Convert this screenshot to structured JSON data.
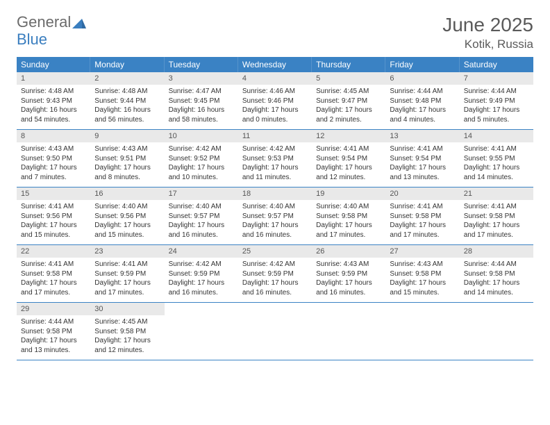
{
  "brand": {
    "word1": "General",
    "word2": "Blue"
  },
  "header": {
    "month_title": "June 2025",
    "location": "Kotik, Russia"
  },
  "weekdays": [
    "Sunday",
    "Monday",
    "Tuesday",
    "Wednesday",
    "Thursday",
    "Friday",
    "Saturday"
  ],
  "colors": {
    "header_bar": "#3a82c4",
    "daynum_bg": "#e9e9e9",
    "rule": "#3a82c4",
    "text": "#333333",
    "muted": "#6b6b6b",
    "brand_blue": "#3a7ebf"
  },
  "weeks": [
    [
      {
        "n": "1",
        "sunrise": "Sunrise: 4:48 AM",
        "sunset": "Sunset: 9:43 PM",
        "day1": "Daylight: 16 hours",
        "day2": "and 54 minutes."
      },
      {
        "n": "2",
        "sunrise": "Sunrise: 4:48 AM",
        "sunset": "Sunset: 9:44 PM",
        "day1": "Daylight: 16 hours",
        "day2": "and 56 minutes."
      },
      {
        "n": "3",
        "sunrise": "Sunrise: 4:47 AM",
        "sunset": "Sunset: 9:45 PM",
        "day1": "Daylight: 16 hours",
        "day2": "and 58 minutes."
      },
      {
        "n": "4",
        "sunrise": "Sunrise: 4:46 AM",
        "sunset": "Sunset: 9:46 PM",
        "day1": "Daylight: 17 hours",
        "day2": "and 0 minutes."
      },
      {
        "n": "5",
        "sunrise": "Sunrise: 4:45 AM",
        "sunset": "Sunset: 9:47 PM",
        "day1": "Daylight: 17 hours",
        "day2": "and 2 minutes."
      },
      {
        "n": "6",
        "sunrise": "Sunrise: 4:44 AM",
        "sunset": "Sunset: 9:48 PM",
        "day1": "Daylight: 17 hours",
        "day2": "and 4 minutes."
      },
      {
        "n": "7",
        "sunrise": "Sunrise: 4:44 AM",
        "sunset": "Sunset: 9:49 PM",
        "day1": "Daylight: 17 hours",
        "day2": "and 5 minutes."
      }
    ],
    [
      {
        "n": "8",
        "sunrise": "Sunrise: 4:43 AM",
        "sunset": "Sunset: 9:50 PM",
        "day1": "Daylight: 17 hours",
        "day2": "and 7 minutes."
      },
      {
        "n": "9",
        "sunrise": "Sunrise: 4:43 AM",
        "sunset": "Sunset: 9:51 PM",
        "day1": "Daylight: 17 hours",
        "day2": "and 8 minutes."
      },
      {
        "n": "10",
        "sunrise": "Sunrise: 4:42 AM",
        "sunset": "Sunset: 9:52 PM",
        "day1": "Daylight: 17 hours",
        "day2": "and 10 minutes."
      },
      {
        "n": "11",
        "sunrise": "Sunrise: 4:42 AM",
        "sunset": "Sunset: 9:53 PM",
        "day1": "Daylight: 17 hours",
        "day2": "and 11 minutes."
      },
      {
        "n": "12",
        "sunrise": "Sunrise: 4:41 AM",
        "sunset": "Sunset: 9:54 PM",
        "day1": "Daylight: 17 hours",
        "day2": "and 12 minutes."
      },
      {
        "n": "13",
        "sunrise": "Sunrise: 4:41 AM",
        "sunset": "Sunset: 9:54 PM",
        "day1": "Daylight: 17 hours",
        "day2": "and 13 minutes."
      },
      {
        "n": "14",
        "sunrise": "Sunrise: 4:41 AM",
        "sunset": "Sunset: 9:55 PM",
        "day1": "Daylight: 17 hours",
        "day2": "and 14 minutes."
      }
    ],
    [
      {
        "n": "15",
        "sunrise": "Sunrise: 4:41 AM",
        "sunset": "Sunset: 9:56 PM",
        "day1": "Daylight: 17 hours",
        "day2": "and 15 minutes."
      },
      {
        "n": "16",
        "sunrise": "Sunrise: 4:40 AM",
        "sunset": "Sunset: 9:56 PM",
        "day1": "Daylight: 17 hours",
        "day2": "and 15 minutes."
      },
      {
        "n": "17",
        "sunrise": "Sunrise: 4:40 AM",
        "sunset": "Sunset: 9:57 PM",
        "day1": "Daylight: 17 hours",
        "day2": "and 16 minutes."
      },
      {
        "n": "18",
        "sunrise": "Sunrise: 4:40 AM",
        "sunset": "Sunset: 9:57 PM",
        "day1": "Daylight: 17 hours",
        "day2": "and 16 minutes."
      },
      {
        "n": "19",
        "sunrise": "Sunrise: 4:40 AM",
        "sunset": "Sunset: 9:58 PM",
        "day1": "Daylight: 17 hours",
        "day2": "and 17 minutes."
      },
      {
        "n": "20",
        "sunrise": "Sunrise: 4:41 AM",
        "sunset": "Sunset: 9:58 PM",
        "day1": "Daylight: 17 hours",
        "day2": "and 17 minutes."
      },
      {
        "n": "21",
        "sunrise": "Sunrise: 4:41 AM",
        "sunset": "Sunset: 9:58 PM",
        "day1": "Daylight: 17 hours",
        "day2": "and 17 minutes."
      }
    ],
    [
      {
        "n": "22",
        "sunrise": "Sunrise: 4:41 AM",
        "sunset": "Sunset: 9:58 PM",
        "day1": "Daylight: 17 hours",
        "day2": "and 17 minutes."
      },
      {
        "n": "23",
        "sunrise": "Sunrise: 4:41 AM",
        "sunset": "Sunset: 9:59 PM",
        "day1": "Daylight: 17 hours",
        "day2": "and 17 minutes."
      },
      {
        "n": "24",
        "sunrise": "Sunrise: 4:42 AM",
        "sunset": "Sunset: 9:59 PM",
        "day1": "Daylight: 17 hours",
        "day2": "and 16 minutes."
      },
      {
        "n": "25",
        "sunrise": "Sunrise: 4:42 AM",
        "sunset": "Sunset: 9:59 PM",
        "day1": "Daylight: 17 hours",
        "day2": "and 16 minutes."
      },
      {
        "n": "26",
        "sunrise": "Sunrise: 4:43 AM",
        "sunset": "Sunset: 9:59 PM",
        "day1": "Daylight: 17 hours",
        "day2": "and 16 minutes."
      },
      {
        "n": "27",
        "sunrise": "Sunrise: 4:43 AM",
        "sunset": "Sunset: 9:58 PM",
        "day1": "Daylight: 17 hours",
        "day2": "and 15 minutes."
      },
      {
        "n": "28",
        "sunrise": "Sunrise: 4:44 AM",
        "sunset": "Sunset: 9:58 PM",
        "day1": "Daylight: 17 hours",
        "day2": "and 14 minutes."
      }
    ],
    [
      {
        "n": "29",
        "sunrise": "Sunrise: 4:44 AM",
        "sunset": "Sunset: 9:58 PM",
        "day1": "Daylight: 17 hours",
        "day2": "and 13 minutes."
      },
      {
        "n": "30",
        "sunrise": "Sunrise: 4:45 AM",
        "sunset": "Sunset: 9:58 PM",
        "day1": "Daylight: 17 hours",
        "day2": "and 12 minutes."
      },
      {
        "empty": true
      },
      {
        "empty": true
      },
      {
        "empty": true
      },
      {
        "empty": true
      },
      {
        "empty": true
      }
    ]
  ]
}
